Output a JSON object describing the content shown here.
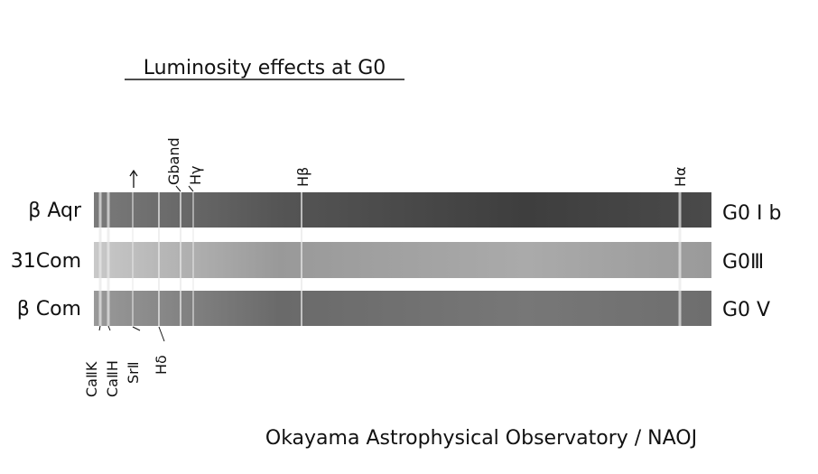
{
  "title": "Luminosity effects at G0",
  "spectra": [
    {
      "star": "β Aqr",
      "type": "G0 I b"
    },
    {
      "star": "31Com",
      "type": "G0Ⅲ"
    },
    {
      "star": "β Com",
      "type": "G0 V"
    }
  ],
  "top_lines": [
    "Gband",
    "Hγ",
    "Hβ",
    "Hα"
  ],
  "bottom_lines": [
    "CaⅡK",
    "CaⅡH",
    "SrⅡ",
    "Hδ"
  ],
  "credit": "Okayama Astrophysical Observatory / NAOJ"
}
